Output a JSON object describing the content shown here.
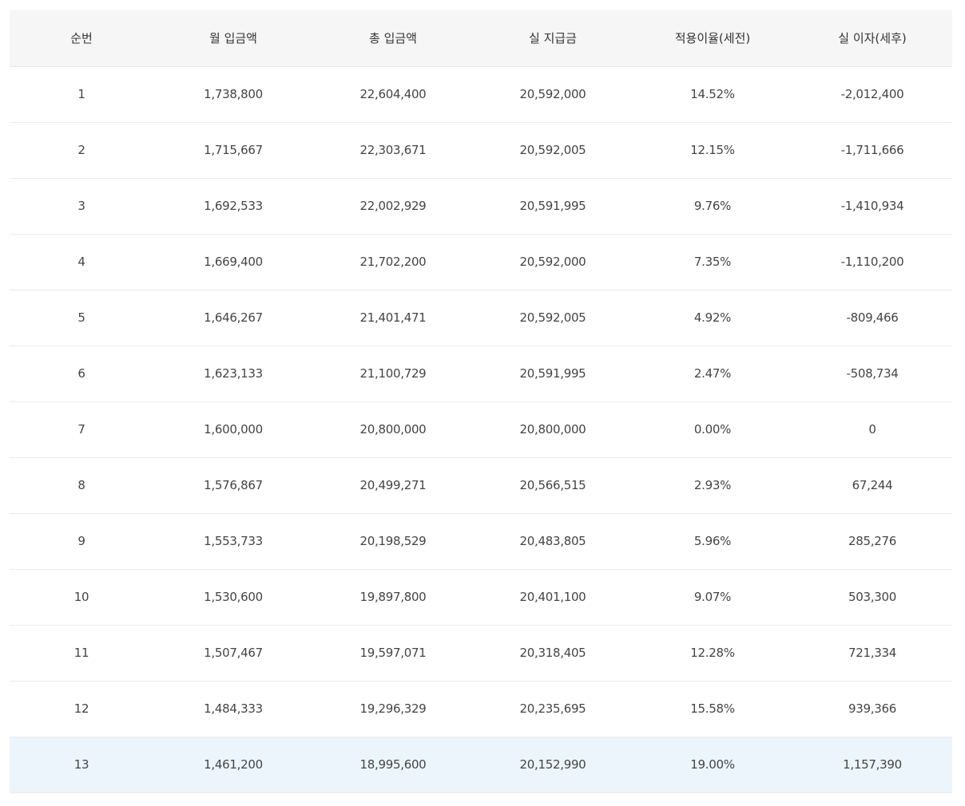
{
  "table": {
    "headers": [
      "순번",
      "월 입금액",
      "총 입금액",
      "실 지급금",
      "적용이율(세전)",
      "실 이자(세후)"
    ],
    "rows": [
      [
        "1",
        "1,738,800",
        "22,604,400",
        "20,592,000",
        "14.52%",
        "-2,012,400"
      ],
      [
        "2",
        "1,715,667",
        "22,303,671",
        "20,592,005",
        "12.15%",
        "-1,711,666"
      ],
      [
        "3",
        "1,692,533",
        "22,002,929",
        "20,591,995",
        "9.76%",
        "-1,410,934"
      ],
      [
        "4",
        "1,669,400",
        "21,702,200",
        "20,592,000",
        "7.35%",
        "-1,110,200"
      ],
      [
        "5",
        "1,646,267",
        "21,401,471",
        "20,592,005",
        "4.92%",
        "-809,466"
      ],
      [
        "6",
        "1,623,133",
        "21,100,729",
        "20,591,995",
        "2.47%",
        "-508,734"
      ],
      [
        "7",
        "1,600,000",
        "20,800,000",
        "20,800,000",
        "0.00%",
        "0"
      ],
      [
        "8",
        "1,576,867",
        "20,499,271",
        "20,566,515",
        "2.93%",
        "67,244"
      ],
      [
        "9",
        "1,553,733",
        "20,198,529",
        "20,483,805",
        "5.96%",
        "285,276"
      ],
      [
        "10",
        "1,530,600",
        "19,897,800",
        "20,401,100",
        "9.07%",
        "503,300"
      ],
      [
        "11",
        "1,507,467",
        "19,597,071",
        "20,318,405",
        "12.28%",
        "721,334"
      ],
      [
        "12",
        "1,484,333",
        "19,296,329",
        "20,235,695",
        "15.58%",
        "939,366"
      ],
      [
        "13",
        "1,461,200",
        "18,995,600",
        "20,152,990",
        "19.00%",
        "1,157,390"
      ]
    ],
    "highlighted_row_index": 12,
    "colors": {
      "header_bg": "#f6f6f6",
      "highlight_bg": "#ebf5fb",
      "row_border": "#ececec",
      "text": "#333333"
    }
  }
}
